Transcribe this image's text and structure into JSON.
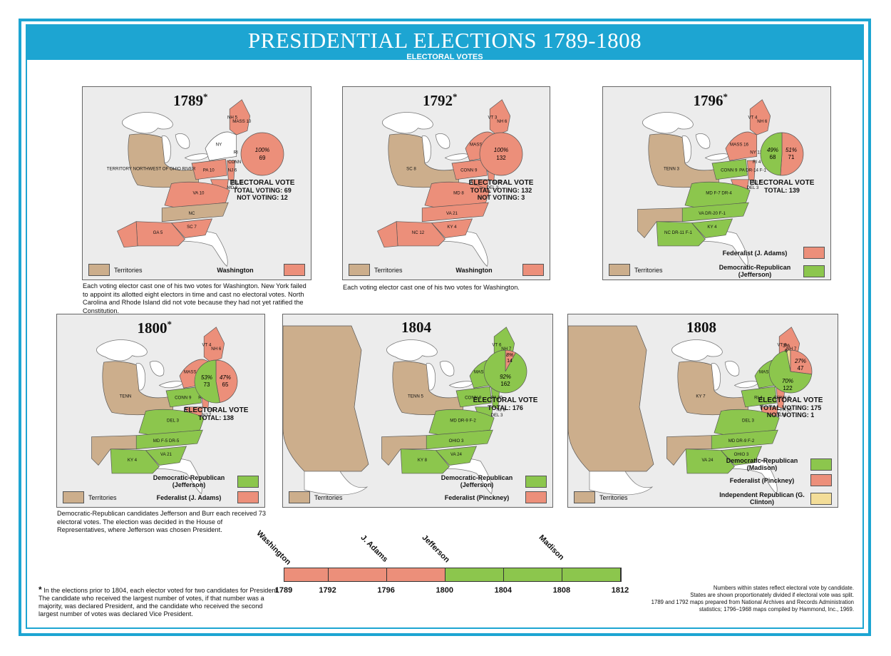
{
  "header": {
    "title": "PRESIDENTIAL ELECTIONS 1789-1808",
    "subtitle": "ELECTORAL VOTES"
  },
  "colors": {
    "frame": "#1da5d2",
    "federalist": "#ec8f7a",
    "democratic_republican": "#8cc64d",
    "independent_republican": "#f3dd98",
    "territories": "#ccae8c",
    "unorganized": "#ffffff"
  },
  "legend_common": {
    "territories": "Territories"
  },
  "maps": [
    {
      "year": "1789",
      "asterisk": "*",
      "pie_percent": "100%",
      "pie_value": "69",
      "ev_heading": "ELECTORAL VOTE",
      "ev_lines": [
        "TOTAL VOTING: 69",
        "NOT VOTING: 12"
      ],
      "legend": [
        {
          "label": "Washington",
          "color": "#ec8f7a"
        }
      ],
      "state_labels": [
        "NH 5",
        "MASS 10",
        "NY",
        "RI",
        "CONN 7",
        "PA 10",
        "NJ 6",
        "DEL 3",
        "MD 6",
        "VA 10",
        "NC",
        "SC 7",
        "GA 5",
        "TERRITORY NORTHWEST OF OHIO RIVER"
      ],
      "note": "Each voting elector cast one of his two votes for Washington. New York failed to appoint its allotted eight electors in time and cast no electoral votes. North Carolina and Rhode Island did not vote because they had not yet ratified the Constitution."
    },
    {
      "year": "1792",
      "asterisk": "*",
      "pie_percent": "100%",
      "pie_value": "132",
      "ev_heading": "ELECTORAL VOTE",
      "ev_lines": [
        "TOTAL VOTING: 132",
        "NOT VOTING: 3"
      ],
      "legend": [
        {
          "label": "Washington",
          "color": "#ec8f7a"
        }
      ],
      "state_labels": [
        "VT 3",
        "NH 6",
        "MASS 16",
        "NY 12",
        "RI 4",
        "CONN 9",
        "PA 15",
        "NJ 7",
        "DEL 3",
        "MD 8",
        "VA 21",
        "KY 4",
        "NC 12",
        "SC 8",
        "GA 4",
        "TERR S OF THE OHIO R",
        "TERRITORY NORTHWEST OF OHIO RIVER"
      ],
      "note": "Each voting elector cast one of his two votes for Washington."
    },
    {
      "year": "1796",
      "asterisk": "*",
      "pie_left_percent": "49%",
      "pie_left_value": "68",
      "pie_right_percent": "51%",
      "pie_right_value": "71",
      "pie_fed_fraction": 0.511,
      "ev_heading": "ELECTORAL VOTE",
      "ev_lines": [
        "TOTAL: 139"
      ],
      "legend": [
        {
          "label": "Federalist (J. Adams)",
          "color": "#ec8f7a"
        },
        {
          "label": "Democratic-Republican (Jefferson)",
          "color": "#8cc64d"
        }
      ],
      "state_labels": [
        "VT 4",
        "NH 6",
        "MASS 16",
        "NY 12",
        "RI 4",
        "CONN 9",
        "PA DR-14 F-1",
        "NJ 7",
        "DEL 3",
        "MD F-7 DR-4",
        "VA DR-20 F-1",
        "KY 4",
        "NC DR-11 F-1",
        "TENN 3",
        "SC 8",
        "GA 4",
        "TERR SOUTH OF OHIO RIVER",
        "TERRITORY NORTHWEST OF OHIO RIVER"
      ]
    },
    {
      "year": "1800",
      "asterisk": "*",
      "pie_left_percent": "53%",
      "pie_left_value": "73",
      "pie_right_percent": "47%",
      "pie_right_value": "65",
      "pie_fed_fraction": 0.471,
      "ev_heading": "ELECTORAL VOTE",
      "ev_lines": [
        "TOTAL: 138"
      ],
      "legend": [
        {
          "label": "Democratic-Republican (Jefferson)",
          "color": "#8cc64d"
        },
        {
          "label": "Federalist (J. Adams)",
          "color": "#ec8f7a"
        }
      ],
      "state_labels": [
        "VT 4",
        "NH 6",
        "MASS 16",
        "NY 12",
        "RI 4",
        "CONN 9",
        "PA DR-8",
        "F-7",
        "NJ 7",
        "DEL 3",
        "MD F-5 DR-5",
        "VA 21",
        "KY 4",
        "TENN",
        "NC DR-8",
        "F-4",
        "SC 8",
        "GA 4",
        "TERR SOUTH OF OHIO RIVER",
        "MISS TERR",
        "INDIANA TERRITORY",
        "TERRITORY NORTHWEST OF OHIO RIVER"
      ],
      "note": "Democratic-Republican candidates Jefferson and Burr each received 73 electoral votes. The election was decided in the House of Representatives, where Jefferson was chosen President."
    },
    {
      "year": "1804",
      "asterisk": "",
      "pie_top_percent": "8%",
      "pie_top_value": "14",
      "pie_main_percent": "92%",
      "pie_main_value": "162",
      "pie_fed_fraction": 0.08,
      "ev_heading": "ELECTORAL VOTE",
      "ev_lines": [
        "TOTAL: 176"
      ],
      "legend": [
        {
          "label": "Democratic-Republican (Jefferson)",
          "color": "#8cc64d"
        },
        {
          "label": "Federalist (Pinckney)",
          "color": "#ec8f7a"
        }
      ],
      "state_labels": [
        "VT 6",
        "NH 7",
        "MASS 19",
        "NY 19",
        "RI 4",
        "CONN 9",
        "PA 20",
        "NJ 8",
        "DEL 3",
        "MD DR-9 F-2",
        "OHIO 3",
        "VA 24",
        "KY 8",
        "TENN 5",
        "NC 14",
        "SC 10",
        "GA 6",
        "MISS TERR",
        "ORLEANS TERR",
        "INDIANA TERRITORY",
        "DISTRICT OF LOUISIANA"
      ]
    },
    {
      "year": "1808",
      "asterisk": "",
      "pie_a_percent": "3%",
      "pie_a_value": "6",
      "pie_b_percent": "27%",
      "pie_b_value": "47",
      "pie_c_percent": "70%",
      "pie_c_value": "122",
      "ev_heading": "ELECTORAL VOTE",
      "ev_lines": [
        "TOTAL VOTING: 175",
        "NOT VOTING: 1"
      ],
      "legend": [
        {
          "label": "Democratic-Republican (Madison)",
          "color": "#8cc64d"
        },
        {
          "label": "Federalist (Pinckney)",
          "color": "#ec8f7a"
        },
        {
          "label": "Independent Republican (G. Clinton)",
          "color": "#f3dd98"
        }
      ],
      "state_labels": [
        "VT 6",
        "NH 7",
        "MASS 19",
        "NY DR-13",
        "IR-6",
        "RI 4",
        "CONN 9",
        "PA 20",
        "NJ 8",
        "DEL 3",
        "MD DR-9 F-2",
        "OHIO 3",
        "VA 24",
        "KY 7",
        "TENN 5",
        "NC DR-11",
        "F-3",
        "SC 10",
        "GA 6",
        "MICH TERR",
        "MISS TERR",
        "ORLEANS TERR",
        "INDIANA TERRITORY",
        "LOUISIANA TERRITORY"
      ]
    }
  ],
  "timeline": {
    "ticks": [
      "1789",
      "1792",
      "1796",
      "1800",
      "1804",
      "1808",
      "1812"
    ],
    "segments": [
      {
        "from": 1789,
        "to": 1792,
        "party": "federalist"
      },
      {
        "from": 1792,
        "to": 1796,
        "party": "federalist"
      },
      {
        "from": 1796,
        "to": 1800,
        "party": "federalist"
      },
      {
        "from": 1800,
        "to": 1804,
        "party": "democratic_republican"
      },
      {
        "from": 1804,
        "to": 1808,
        "party": "democratic_republican"
      },
      {
        "from": 1808,
        "to": 1812,
        "party": "democratic_republican"
      }
    ],
    "presidents": [
      "Washington",
      "J. Adams",
      "Jefferson",
      "Madison"
    ]
  },
  "footnote_left": "In the elections prior to 1804, each elector voted for two candidates for President. The candidate who received the largest number of votes, if that number was a majority, was declared President, and the candidate who received the second largest number of votes was declared Vice President.",
  "footnote_star": "*",
  "footnote_right": [
    "Numbers within states reflect electoral vote by candidate.",
    "States are shown proportionately divided if electoral vote was split.",
    "1789 and 1792 maps prepared from National Archives and Records Administration",
    "statistics; 1796–1968 maps compiled by Hammond, Inc., 1969."
  ]
}
